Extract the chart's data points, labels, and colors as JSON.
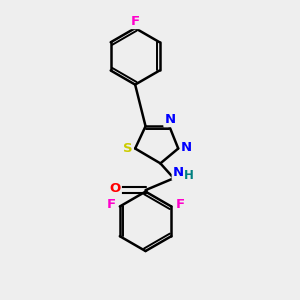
{
  "bg_color": "#eeeeee",
  "bond_color": "#000000",
  "bond_width": 1.8,
  "atom_colors": {
    "F": "#ff00cc",
    "S": "#cccc00",
    "N": "#0000ff",
    "O": "#ff0000",
    "H": "#008080"
  },
  "figsize": [
    3.0,
    3.0
  ],
  "dpi": 100
}
